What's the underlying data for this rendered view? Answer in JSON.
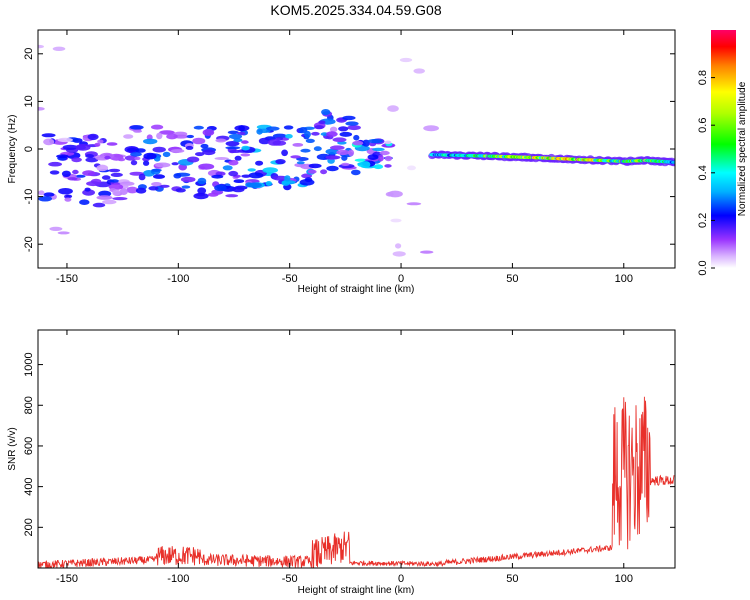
{
  "figure": {
    "title": "KOM5.2025.334.04.59.G08"
  },
  "chart_data": [
    {
      "type": "heatmap",
      "name": "spectrogram",
      "xlabel": "Height of straight line (km)",
      "ylabel": "Frequency (Hz)",
      "xlim": [
        -163,
        123
      ],
      "ylim": [
        -25,
        25
      ],
      "x_ticks": [
        -150,
        -100,
        -50,
        0,
        50,
        100
      ],
      "x_tick_labels": [
        "-150",
        "-100",
        "-50",
        "0",
        "50",
        "100"
      ],
      "y_ticks": [
        -20,
        -10,
        0,
        10,
        20
      ],
      "y_tick_labels": [
        "-20",
        "-10",
        "0",
        "10",
        "20"
      ],
      "colorbar": {
        "label": "Normalized spectral amplitude",
        "range": [
          0,
          1
        ],
        "ticks": [
          0.0,
          0.2,
          0.4,
          0.6,
          0.8
        ],
        "tick_labels": [
          "0.0",
          "0.2",
          "0.4",
          "0.6",
          "0.8"
        ],
        "colormap": [
          "#ffffff",
          "#cc99ff",
          "#7f00ff",
          "#0000ff",
          "#00ffff",
          "#00ff00",
          "#ffff00",
          "#ff8000",
          "#ff0000",
          "#ff0080"
        ]
      },
      "clusters": [
        {
          "x": [
            -160,
            -120
          ],
          "y": [
            -12,
            3
          ],
          "amp": 0.18
        },
        {
          "x": [
            -120,
            -70
          ],
          "y": [
            -10,
            5
          ],
          "amp": 0.22
        },
        {
          "x": [
            -70,
            -40
          ],
          "y": [
            -8,
            5
          ],
          "amp": 0.25
        },
        {
          "x": [
            -40,
            -20
          ],
          "y": [
            -5,
            8
          ],
          "amp": 0.22
        },
        {
          "x": [
            -20,
            -5
          ],
          "y": [
            -4,
            2
          ],
          "amp": 0.3
        },
        {
          "x": [
            -163,
            -150
          ],
          "y": [
            -24,
            24
          ],
          "amp": 0.06
        },
        {
          "x": [
            -10,
            15
          ],
          "y": [
            -24,
            24
          ],
          "amp": 0.06
        }
      ],
      "ridge": {
        "x": [
          14,
          40,
          60,
          80,
          100,
          110,
          123
        ],
        "y": [
          -1.2,
          -1.5,
          -1.8,
          -2.2,
          -2.6,
          -2.4,
          -2.8
        ],
        "amp": [
          0.3,
          0.5,
          0.6,
          0.65,
          0.45,
          0.5,
          0.35
        ]
      }
    },
    {
      "type": "line",
      "name": "snr",
      "xlabel": "Height of straight line (km)",
      "ylabel": "SNR (v/v)",
      "xlim": [
        -163,
        123
      ],
      "ylim": [
        0,
        1170
      ],
      "x_ticks": [
        -150,
        -100,
        -50,
        0,
        50,
        100
      ],
      "x_tick_labels": [
        "-150",
        "-100",
        "-50",
        "0",
        "50",
        "100"
      ],
      "y_ticks": [
        200,
        400,
        600,
        800,
        1000
      ],
      "y_tick_labels": [
        "200",
        "400",
        "600",
        "800",
        "1000"
      ],
      "color": "#e8302a",
      "segments": [
        {
          "x": [
            -163,
            -110
          ],
          "base": [
            15,
            40
          ],
          "noise": 20
        },
        {
          "x": [
            -110,
            -90
          ],
          "base": [
            60,
            60
          ],
          "noise": 50
        },
        {
          "x": [
            -90,
            -40
          ],
          "base": [
            40,
            30
          ],
          "noise": 30
        },
        {
          "x": [
            -40,
            -23
          ],
          "base": [
            60,
            110
          ],
          "noise": 80
        },
        {
          "x": [
            -23,
            20
          ],
          "base": [
            25,
            20
          ],
          "noise": 12
        },
        {
          "x": [
            20,
            95
          ],
          "base": [
            25,
            100
          ],
          "noise": 15
        },
        {
          "x": [
            95,
            112
          ],
          "base": [
            450,
            500
          ],
          "noise": 380
        },
        {
          "x": [
            112,
            123
          ],
          "base": [
            430,
            430
          ],
          "noise": 25
        }
      ]
    }
  ]
}
